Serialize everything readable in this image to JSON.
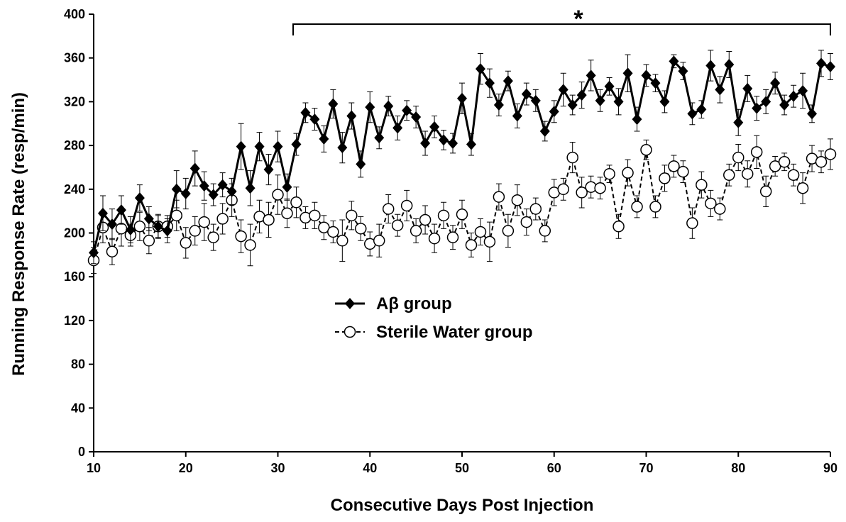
{
  "chart_data": {
    "type": "line",
    "xlabel": "Consecutive Days Post Injection",
    "ylabel": "Running Response Rate (resp/min)",
    "annotation": "*",
    "x": [
      10,
      11,
      12,
      13,
      14,
      15,
      16,
      17,
      18,
      19,
      20,
      21,
      22,
      23,
      24,
      25,
      26,
      27,
      28,
      29,
      30,
      31,
      32,
      33,
      34,
      35,
      36,
      37,
      38,
      39,
      40,
      41,
      42,
      43,
      44,
      45,
      46,
      47,
      48,
      49,
      50,
      51,
      52,
      53,
      54,
      55,
      56,
      57,
      58,
      59,
      60,
      61,
      62,
      63,
      64,
      65,
      66,
      67,
      68,
      69,
      70,
      71,
      72,
      73,
      74,
      75,
      76,
      77,
      78,
      79,
      80,
      81,
      82,
      83,
      84,
      85,
      86,
      87,
      88,
      89,
      90
    ],
    "xlim": [
      10,
      90
    ],
    "xticks": [
      10,
      20,
      30,
      40,
      50,
      60,
      70,
      80,
      90
    ],
    "ylim": [
      0,
      400
    ],
    "yticks": [
      0,
      40,
      80,
      120,
      160,
      200,
      240,
      280,
      320,
      360,
      400
    ],
    "legend": "center-left",
    "series": [
      {
        "name": "Aβ group",
        "color": "#000000",
        "marker": "diamond",
        "dash": false,
        "values": [
          182,
          218,
          208,
          221,
          203,
          232,
          213,
          206,
          202,
          240,
          236,
          259,
          243,
          235,
          244,
          238,
          279,
          241,
          279,
          258,
          279,
          242,
          281,
          310,
          304,
          286,
          318,
          278,
          307,
          263,
          315,
          287,
          316,
          296,
          312,
          306,
          282,
          297,
          285,
          282,
          323,
          281,
          350,
          337,
          317,
          339,
          307,
          327,
          321,
          293,
          311,
          331,
          317,
          326,
          344,
          321,
          334,
          320,
          346,
          304,
          344,
          337,
          320,
          357,
          348,
          309,
          313,
          353,
          331,
          354,
          301,
          332,
          314,
          320,
          337,
          317,
          325,
          330,
          309,
          355,
          352
        ],
        "errors": [
          10,
          16,
          14,
          13,
          12,
          12,
          11,
          10,
          11,
          17,
          14,
          16,
          13,
          10,
          11,
          12,
          21,
          16,
          13,
          14,
          14,
          12,
          10,
          9,
          10,
          12,
          13,
          14,
          12,
          12,
          14,
          10,
          9,
          11,
          9,
          10,
          11,
          10,
          9,
          9,
          14,
          10,
          14,
          13,
          10,
          9,
          11,
          10,
          10,
          9,
          10,
          15,
          9,
          12,
          14,
          10,
          8,
          12,
          17,
          11,
          10,
          8,
          10,
          6,
          8,
          10,
          8,
          14,
          12,
          12,
          12,
          12,
          11,
          11,
          10,
          9,
          10,
          16,
          8,
          12,
          12
        ]
      },
      {
        "name": "Sterile Water group",
        "color": "#000000",
        "marker": "circle",
        "dash": true,
        "values": [
          175,
          205,
          183,
          204,
          198,
          206,
          193,
          206,
          206,
          216,
          191,
          202,
          210,
          196,
          213,
          230,
          197,
          189,
          215,
          212,
          235,
          218,
          228,
          214,
          216,
          205,
          201,
          193,
          216,
          204,
          190,
          193,
          222,
          207,
          225,
          202,
          212,
          195,
          216,
          196,
          217,
          189,
          201,
          192,
          233,
          202,
          230,
          210,
          222,
          202,
          237,
          240,
          269,
          237,
          242,
          241,
          254,
          206,
          255,
          224,
          276,
          224,
          250,
          261,
          256,
          209,
          244,
          227,
          222,
          253,
          269,
          254,
          274,
          238,
          261,
          265,
          253,
          241,
          268,
          265,
          272
        ],
        "errors": [
          12,
          14,
          12,
          16,
          10,
          13,
          12,
          11,
          10,
          14,
          14,
          13,
          17,
          12,
          14,
          15,
          15,
          19,
          15,
          16,
          18,
          13,
          14,
          10,
          12,
          11,
          10,
          19,
          13,
          11,
          11,
          15,
          13,
          10,
          14,
          11,
          13,
          13,
          12,
          11,
          13,
          11,
          12,
          18,
          12,
          15,
          14,
          12,
          10,
          10,
          12,
          10,
          14,
          14,
          10,
          10,
          8,
          11,
          12,
          10,
          9,
          10,
          12,
          10,
          10,
          14,
          12,
          12,
          10,
          10,
          12,
          12,
          15,
          14,
          9,
          8,
          10,
          14,
          12,
          10,
          14
        ]
      }
    ]
  }
}
